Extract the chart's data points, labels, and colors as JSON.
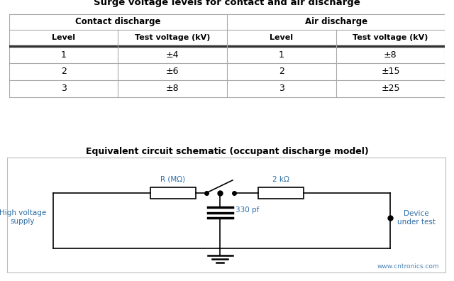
{
  "title_table": "Surge voltage levels for contact and air discharge",
  "col_headers_1": [
    "Contact discharge",
    "Air discharge"
  ],
  "col_headers_2": [
    "Level",
    "Test voltage (kV)",
    "Level",
    "Test voltage (kV)"
  ],
  "rows": [
    [
      "1",
      "±4",
      "1",
      "±8"
    ],
    [
      "2",
      "±6",
      "2",
      "±15"
    ],
    [
      "3",
      "±8",
      "3",
      "±25"
    ]
  ],
  "title_circuit": "Equivalent circuit schematic (occupant discharge model)",
  "label_R": "R (MΩ)",
  "label_2k": "2 kΩ",
  "label_330pf": "330 pf",
  "label_hv": "High voltage\nsupply",
  "label_device": "Device\nunder test",
  "label_watermark": "www.cntronics.com",
  "bg_color": "#ffffff",
  "line_color": "#000000",
  "circuit_color": "#2c6ca3",
  "text_color": "#000000"
}
